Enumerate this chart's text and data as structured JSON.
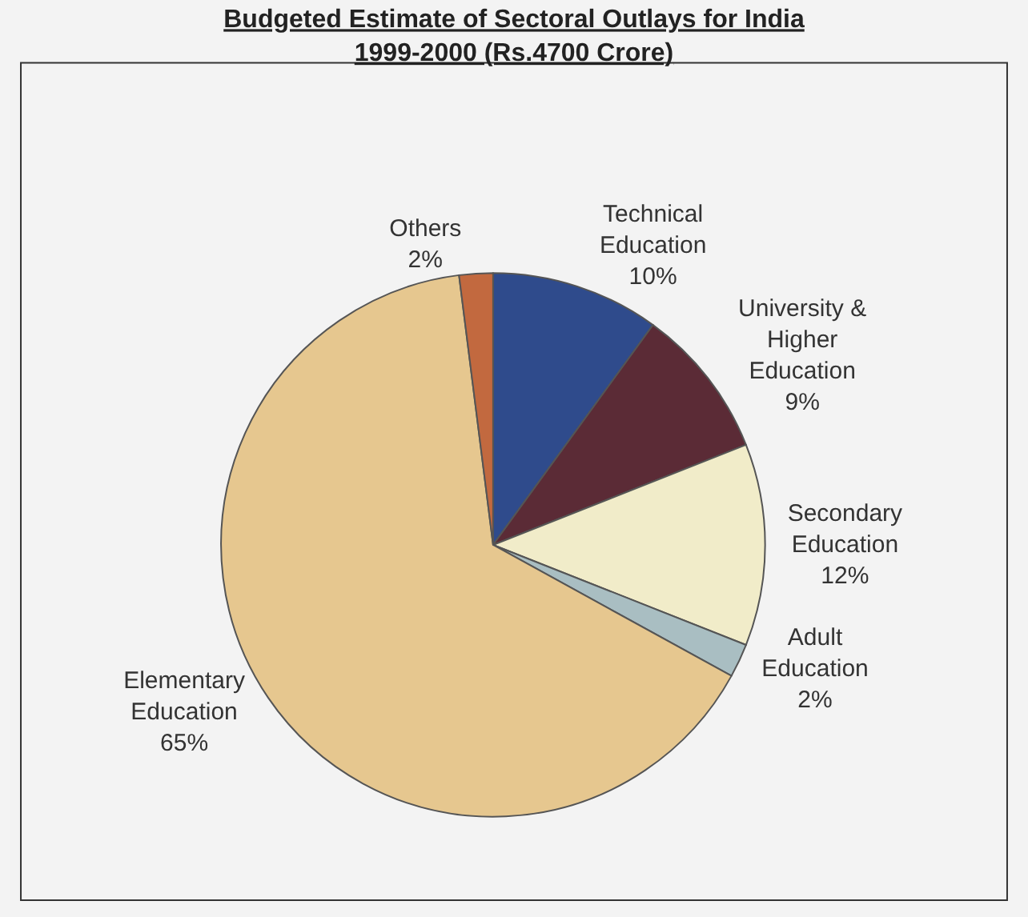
{
  "chart_data": {
    "type": "pie",
    "title": "Budgeted Estimate of Sectoral Outlays for India\n1999-2000 (Rs.4700 Crore)",
    "categories": [
      "Technical Education",
      "University & Higher Education",
      "Secondary Education",
      "Adult Education",
      "Elementary Education",
      "Others"
    ],
    "values": [
      10,
      9,
      12,
      2,
      65,
      2
    ],
    "value_labels": [
      "10%",
      "9%",
      "12%",
      "2%",
      "65%",
      "2%"
    ],
    "colors": [
      "#2f4b8c",
      "#5b2b36",
      "#f1ecc9",
      "#a9bec2",
      "#e6c78f",
      "#c2693f"
    ],
    "legend": false
  }
}
